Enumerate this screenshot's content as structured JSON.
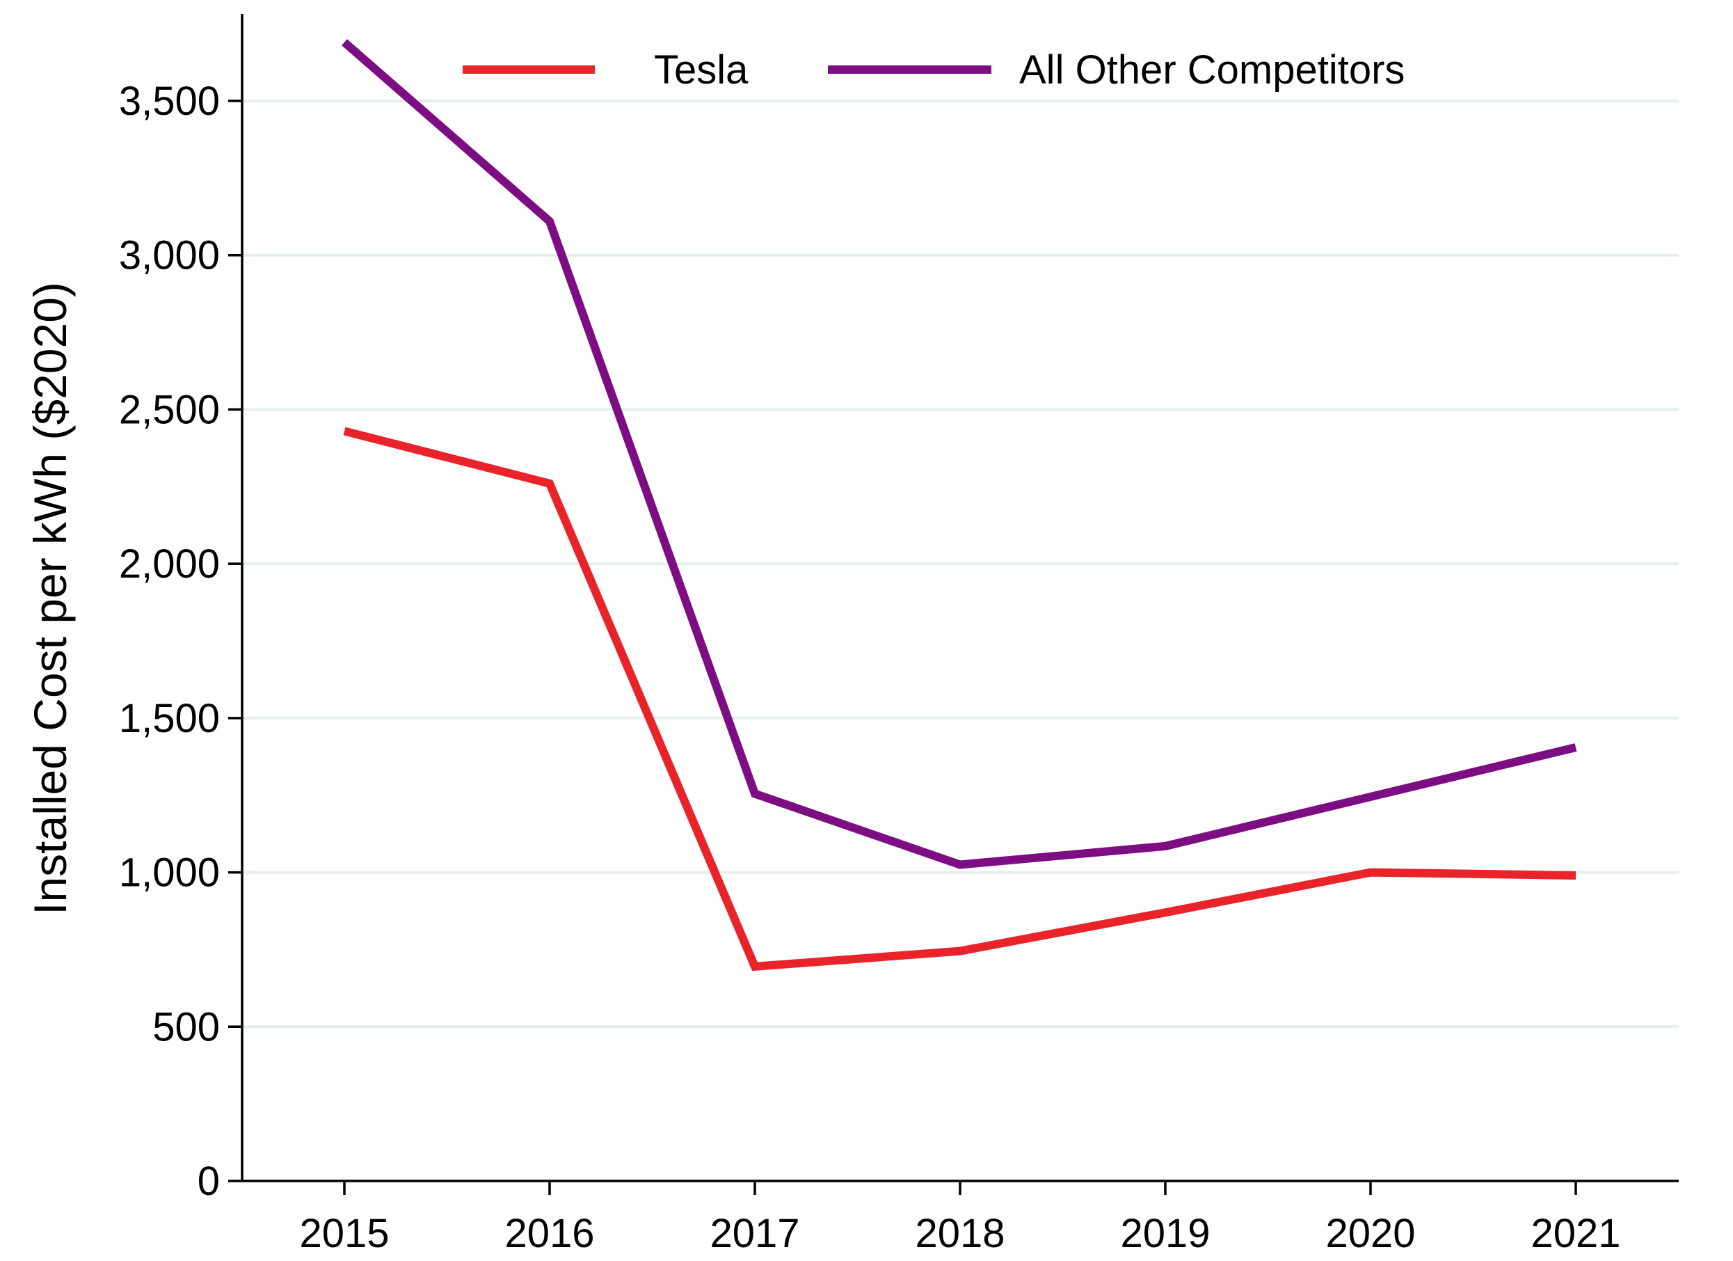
{
  "chart_data": {
    "type": "line",
    "title": "",
    "xlabel": "",
    "ylabel": "Installed Cost per kWh ($2020)",
    "categories": [
      "2015",
      "2016",
      "2017",
      "2018",
      "2019",
      "2020",
      "2021"
    ],
    "x_ticks": [
      "2015",
      "2016",
      "2017",
      "2018",
      "2019",
      "2020",
      "2021"
    ],
    "y_ticks": [
      0,
      500,
      1000,
      1500,
      2000,
      2500,
      3000,
      3500
    ],
    "y_tick_labels": [
      "0",
      "500",
      "1,000",
      "1,500",
      "2,000",
      "2,500",
      "3,000",
      "3,500"
    ],
    "ylim": [
      0,
      3800
    ],
    "grid": "horizontal",
    "legend_position": "top",
    "series": [
      {
        "name": "Tesla",
        "color": "#e8232a",
        "values": [
          2430,
          2260,
          695,
          745,
          870,
          1000,
          990
        ]
      },
      {
        "name": "All Other Competitors",
        "color": "#7c0d82",
        "values": [
          3690,
          3110,
          1255,
          1025,
          1085,
          1245,
          1405
        ]
      }
    ]
  }
}
